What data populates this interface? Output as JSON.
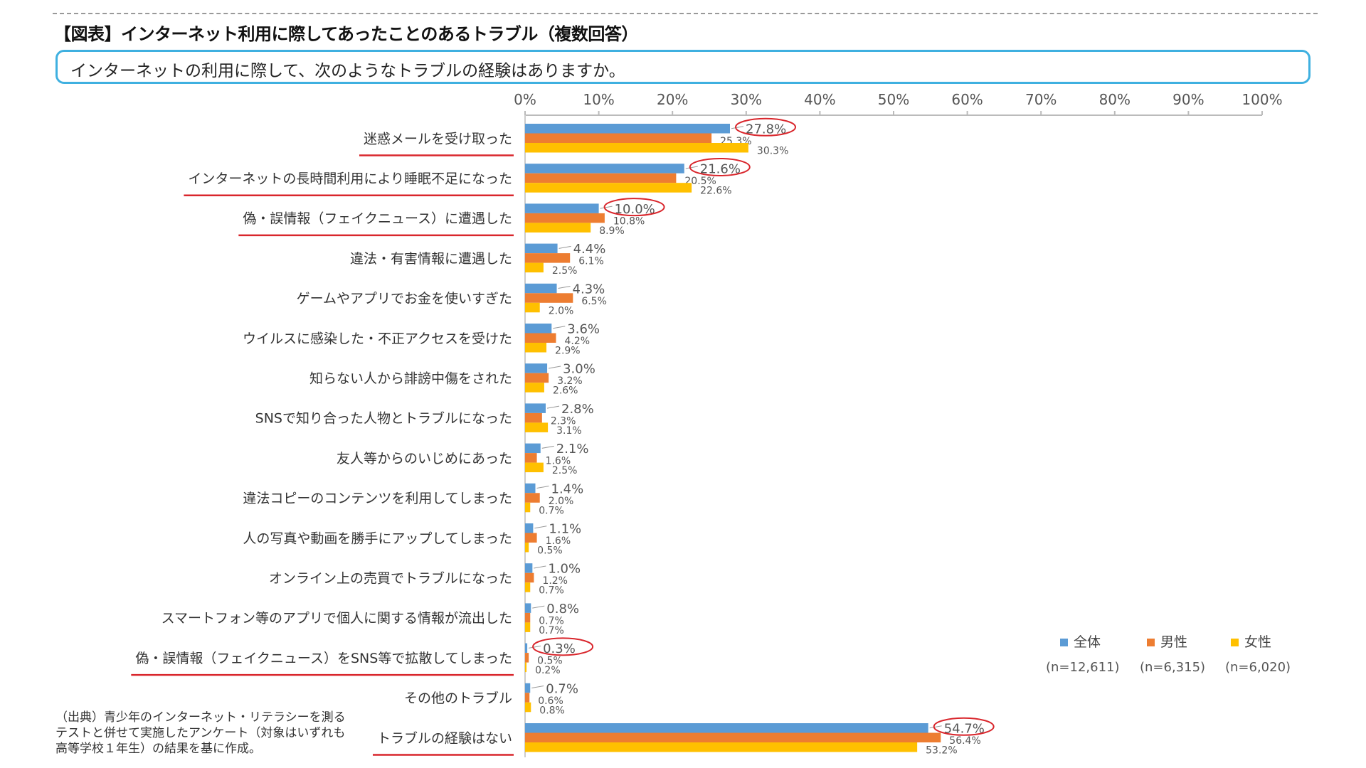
{
  "header": {
    "title": "【図表】インターネット利用に際してあったことのあるトラブル（複数回答）",
    "question": "インターネットの利用に際して、次のようなトラブルの経験はありますか。"
  },
  "footnote": "（出典）青少年のインターネット・リテラシーを測るテストと併せて実施したアンケート（対象はいずれも高等学校１年生）の結果を基に作成。",
  "chart_data": {
    "type": "bar",
    "orientation": "horizontal",
    "title": "インターネット利用に際してあったことのあるトラブル（複数回答）",
    "xlim": [
      0,
      100
    ],
    "x_ticks": [
      "0%",
      "10%",
      "20%",
      "30%",
      "40%",
      "50%",
      "60%",
      "70%",
      "80%",
      "90%",
      "100%"
    ],
    "legend_position": "bottom-right",
    "categories": [
      "迷惑メールを受け取った",
      "インターネットの長時間利用により睡眠不足になった",
      "偽・誤情報（フェイクニュース）に遭遇した",
      "違法・有害情報に遭遇した",
      "ゲームやアプリでお金を使いすぎた",
      "ウイルスに感染した・不正アクセスを受けた",
      "知らない人から誹謗中傷をされた",
      "SNSで知り合った人物とトラブルになった",
      "友人等からのいじめにあった",
      "違法コピーのコンテンツを利用してしまった",
      "人の写真や動画を勝手にアップしてしまった",
      "オンライン上の売買でトラブルになった",
      "スマートフォン等のアプリで個人に関する情報が流出した",
      "偽・誤情報（フェイクニュース）をSNS等で拡散してしまった",
      "その他のトラブル",
      "トラブルの経験はない"
    ],
    "highlighted": [
      0,
      1,
      2,
      13,
      15
    ],
    "series": [
      {
        "name": "全体",
        "n": "(n=12,611)",
        "color": "#5b9bd5",
        "values": [
          27.8,
          21.6,
          10.0,
          4.4,
          4.3,
          3.6,
          3.0,
          2.8,
          2.1,
          1.4,
          1.1,
          1.0,
          0.8,
          0.3,
          0.7,
          54.7
        ]
      },
      {
        "name": "男性",
        "n": "(n=6,315)",
        "color": "#ed7d31",
        "values": [
          25.3,
          20.5,
          10.8,
          6.1,
          6.5,
          4.2,
          3.2,
          2.3,
          1.6,
          2.0,
          1.6,
          1.2,
          0.7,
          0.5,
          0.6,
          56.4
        ]
      },
      {
        "name": "女性",
        "n": "(n=6,020)",
        "color": "#ffc000",
        "values": [
          30.3,
          22.6,
          8.9,
          2.5,
          2.0,
          2.9,
          2.6,
          3.1,
          2.5,
          0.7,
          0.5,
          0.7,
          0.7,
          0.2,
          0.8,
          53.2
        ]
      }
    ]
  },
  "colors": {
    "highlight": "#d9262c",
    "box_border": "#3fb0e0"
  }
}
